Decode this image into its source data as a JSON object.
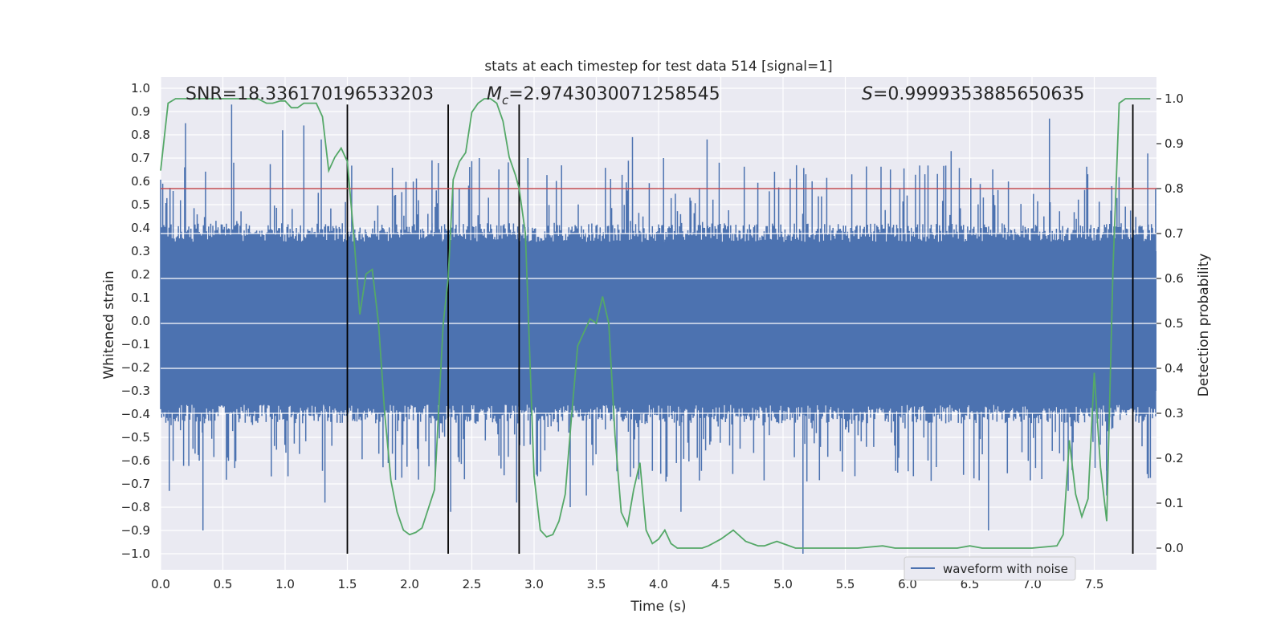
{
  "chart_data": {
    "type": "line",
    "title": "stats at each timestep for test data 514 [signal=1]",
    "xlabel": "Time (s)",
    "ylabel": "Whitened strain",
    "y2label": "Detection probability",
    "xlim": [
      0.0,
      8.0
    ],
    "ylim": [
      -1.1,
      1.02
    ],
    "y2lim": [
      -0.05,
      1.045
    ],
    "xticks": [
      "0.0",
      "0.5",
      "1.0",
      "1.5",
      "2.0",
      "2.5",
      "3.0",
      "3.5",
      "4.0",
      "4.5",
      "5.0",
      "5.5",
      "6.0",
      "6.5",
      "7.0",
      "7.5"
    ],
    "yticks": [
      "1.0",
      "0.9",
      "0.8",
      "0.7",
      "0.6",
      "0.5",
      "0.4",
      "0.3",
      "0.2",
      "0.1",
      "0.0",
      "−0.1",
      "−0.2",
      "−0.3",
      "−0.4",
      "−0.5",
      "−0.6",
      "−0.7",
      "−0.8",
      "−0.9",
      "−1.0"
    ],
    "y2ticks": [
      "1.0",
      "0.9",
      "0.8",
      "0.7",
      "0.6",
      "0.5",
      "0.4",
      "0.3",
      "0.2",
      "0.1",
      "0.0"
    ],
    "grid": true,
    "legend": {
      "placement": "lower-right",
      "entries": [
        "waveform with noise"
      ]
    },
    "annotations": {
      "snr": "SNR=18.336170196533203",
      "mc_symbol": "M",
      "mc_sub": "c",
      "mc_value": "=2.9743030071258545",
      "s_symbol": "S",
      "s_value": "=0.9999353885650635"
    },
    "threshold": {
      "y2": 0.8,
      "color": "#c44e52"
    },
    "vlines": {
      "x": [
        1.5,
        2.31,
        2.88,
        7.81
      ],
      "y_range": [
        -1.0,
        0.93
      ]
    },
    "colors": {
      "waveform": "#4c72b0",
      "probability": "#55a868",
      "vline": "#000000",
      "background": "#eaeaf2"
    },
    "waveform": {
      "name": "waveform with noise",
      "typical_envelope": [
        -0.36,
        0.34
      ],
      "min": -1.0,
      "max": 0.93,
      "peaks": [
        {
          "x": 0.2,
          "y": 0.85
        },
        {
          "x": 0.57,
          "y": 0.93
        },
        {
          "x": 0.98,
          "y": 0.82
        },
        {
          "x": 1.15,
          "y": 0.84
        },
        {
          "x": 1.29,
          "y": 0.78
        },
        {
          "x": 2.18,
          "y": 0.69
        },
        {
          "x": 2.56,
          "y": 0.7
        },
        {
          "x": 2.95,
          "y": 0.7
        },
        {
          "x": 3.79,
          "y": 0.79
        },
        {
          "x": 4.04,
          "y": 0.7
        },
        {
          "x": 4.39,
          "y": 0.78
        },
        {
          "x": 6.35,
          "y": 0.73
        },
        {
          "x": 7.14,
          "y": 0.87
        },
        {
          "x": 7.93,
          "y": 0.72
        }
      ],
      "troughs": [
        {
          "x": 0.07,
          "y": -0.73
        },
        {
          "x": 0.34,
          "y": -0.9
        },
        {
          "x": 1.32,
          "y": -0.78
        },
        {
          "x": 2.33,
          "y": -0.82
        },
        {
          "x": 2.86,
          "y": -0.78
        },
        {
          "x": 3.29,
          "y": -0.8
        },
        {
          "x": 3.42,
          "y": -0.75
        },
        {
          "x": 4.18,
          "y": -0.82
        },
        {
          "x": 5.16,
          "y": -1.0
        },
        {
          "x": 6.65,
          "y": -0.9
        },
        {
          "x": 7.29,
          "y": -0.73
        },
        {
          "x": 7.6,
          "y": -0.75
        }
      ]
    },
    "probability": {
      "x": [
        0.0,
        0.06,
        0.12,
        0.25,
        0.38,
        0.5,
        0.6,
        0.7,
        0.78,
        0.85,
        0.9,
        0.96,
        1.0,
        1.05,
        1.1,
        1.15,
        1.2,
        1.25,
        1.3,
        1.35,
        1.4,
        1.45,
        1.5,
        1.55,
        1.6,
        1.65,
        1.7,
        1.75,
        1.8,
        1.85,
        1.9,
        1.95,
        2.0,
        2.05,
        2.1,
        2.2,
        2.27,
        2.31,
        2.35,
        2.4,
        2.45,
        2.5,
        2.55,
        2.6,
        2.65,
        2.7,
        2.75,
        2.8,
        2.85,
        2.88,
        2.93,
        3.0,
        3.05,
        3.1,
        3.15,
        3.2,
        3.25,
        3.3,
        3.35,
        3.4,
        3.45,
        3.5,
        3.55,
        3.6,
        3.65,
        3.7,
        3.75,
        3.8,
        3.85,
        3.9,
        3.95,
        4.0,
        4.05,
        4.1,
        4.15,
        4.2,
        4.25,
        4.3,
        4.35,
        4.4,
        4.5,
        4.6,
        4.7,
        4.8,
        4.85,
        4.9,
        4.95,
        5.0,
        5.1,
        5.2,
        5.3,
        5.4,
        5.6,
        5.8,
        5.9,
        6.0,
        6.2,
        6.4,
        6.5,
        6.6,
        6.8,
        7.0,
        7.2,
        7.25,
        7.3,
        7.35,
        7.4,
        7.45,
        7.5,
        7.55,
        7.6,
        7.65,
        7.7,
        7.75,
        7.81,
        7.85,
        7.9,
        7.95
      ],
      "y": [
        0.84,
        0.99,
        1.0,
        1.0,
        1.0,
        1.0,
        1.0,
        1.0,
        1.0,
        0.99,
        0.99,
        0.995,
        0.995,
        0.98,
        0.98,
        0.99,
        0.99,
        0.99,
        0.96,
        0.84,
        0.87,
        0.89,
        0.86,
        0.7,
        0.52,
        0.61,
        0.62,
        0.5,
        0.3,
        0.15,
        0.08,
        0.04,
        0.03,
        0.035,
        0.045,
        0.13,
        0.5,
        0.6,
        0.82,
        0.86,
        0.88,
        0.97,
        0.99,
        1.0,
        1.0,
        0.99,
        0.95,
        0.87,
        0.83,
        0.8,
        0.7,
        0.16,
        0.04,
        0.025,
        0.03,
        0.06,
        0.12,
        0.29,
        0.45,
        0.48,
        0.51,
        0.5,
        0.56,
        0.5,
        0.25,
        0.08,
        0.05,
        0.13,
        0.19,
        0.04,
        0.01,
        0.02,
        0.04,
        0.01,
        0.0,
        0.0,
        0.0,
        0.0,
        0.0,
        0.005,
        0.02,
        0.04,
        0.015,
        0.005,
        0.005,
        0.01,
        0.015,
        0.01,
        0.0,
        0.0,
        0.0,
        0.0,
        0.0,
        0.005,
        0.0,
        0.0,
        0.0,
        0.0,
        0.005,
        0.0,
        0.0,
        0.0,
        0.005,
        0.03,
        0.24,
        0.12,
        0.07,
        0.11,
        0.39,
        0.18,
        0.06,
        0.62,
        0.99,
        1.0,
        1.0,
        1.0,
        1.0,
        1.0
      ]
    }
  }
}
